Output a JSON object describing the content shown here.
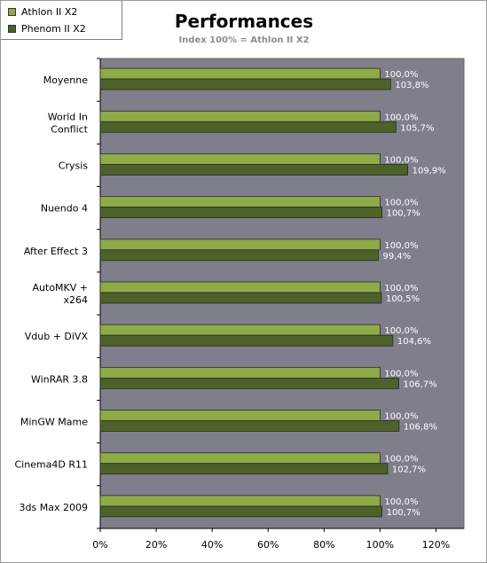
{
  "chart_data": {
    "type": "bar",
    "orientation": "horizontal",
    "title": "Performances",
    "subtitle": "Index 100% = Athlon II X2",
    "categories": [
      "Moyenne",
      "World In Conflict",
      "Crysis",
      "Nuendo 4",
      "After Effect 3",
      "AutoMKV + x264",
      "Vdub + DiVX",
      "WinRAR 3.8",
      "MinGW Mame",
      "Cinema4D R11",
      "3ds Max 2009"
    ],
    "category_lines": [
      [
        "Moyenne"
      ],
      [
        "World In",
        "Conflict"
      ],
      [
        "Crysis"
      ],
      [
        "Nuendo 4"
      ],
      [
        "After Effect 3"
      ],
      [
        "AutoMKV +",
        "x264"
      ],
      [
        "Vdub + DiVX"
      ],
      [
        "WinRAR 3.8"
      ],
      [
        "MinGW Mame"
      ],
      [
        "Cinema4D R11"
      ],
      [
        "3ds Max 2009"
      ]
    ],
    "series": [
      {
        "name": "Athlon II X2",
        "color": "#8faa47",
        "values": [
          100.0,
          100.0,
          100.0,
          100.0,
          100.0,
          100.0,
          100.0,
          100.0,
          100.0,
          100.0,
          100.0
        ],
        "labels": [
          "100,0%",
          "100,0%",
          "100,0%",
          "100,0%",
          "100,0%",
          "100,0%",
          "100,0%",
          "100,0%",
          "100,0%",
          "100,0%",
          "100,0%"
        ]
      },
      {
        "name": "Phenom II X2",
        "color": "#4d6129",
        "values": [
          103.8,
          105.7,
          109.9,
          100.7,
          99.4,
          100.5,
          104.6,
          106.7,
          106.8,
          102.7,
          100.7
        ],
        "labels": [
          "103,8%",
          "105,7%",
          "109,9%",
          "100,7%",
          "99,4%",
          "100,5%",
          "104,6%",
          "106,7%",
          "106,8%",
          "102,7%",
          "100,7%"
        ]
      }
    ],
    "xlim": [
      0,
      130
    ],
    "xticks": [
      0,
      20,
      40,
      60,
      80,
      100,
      120
    ],
    "xtick_labels": [
      "0%",
      "20%",
      "40%",
      "60%",
      "80%",
      "100%",
      "120%"
    ],
    "plot_background": "#7f7f8c",
    "legend_position": "top-left",
    "grid": false
  }
}
